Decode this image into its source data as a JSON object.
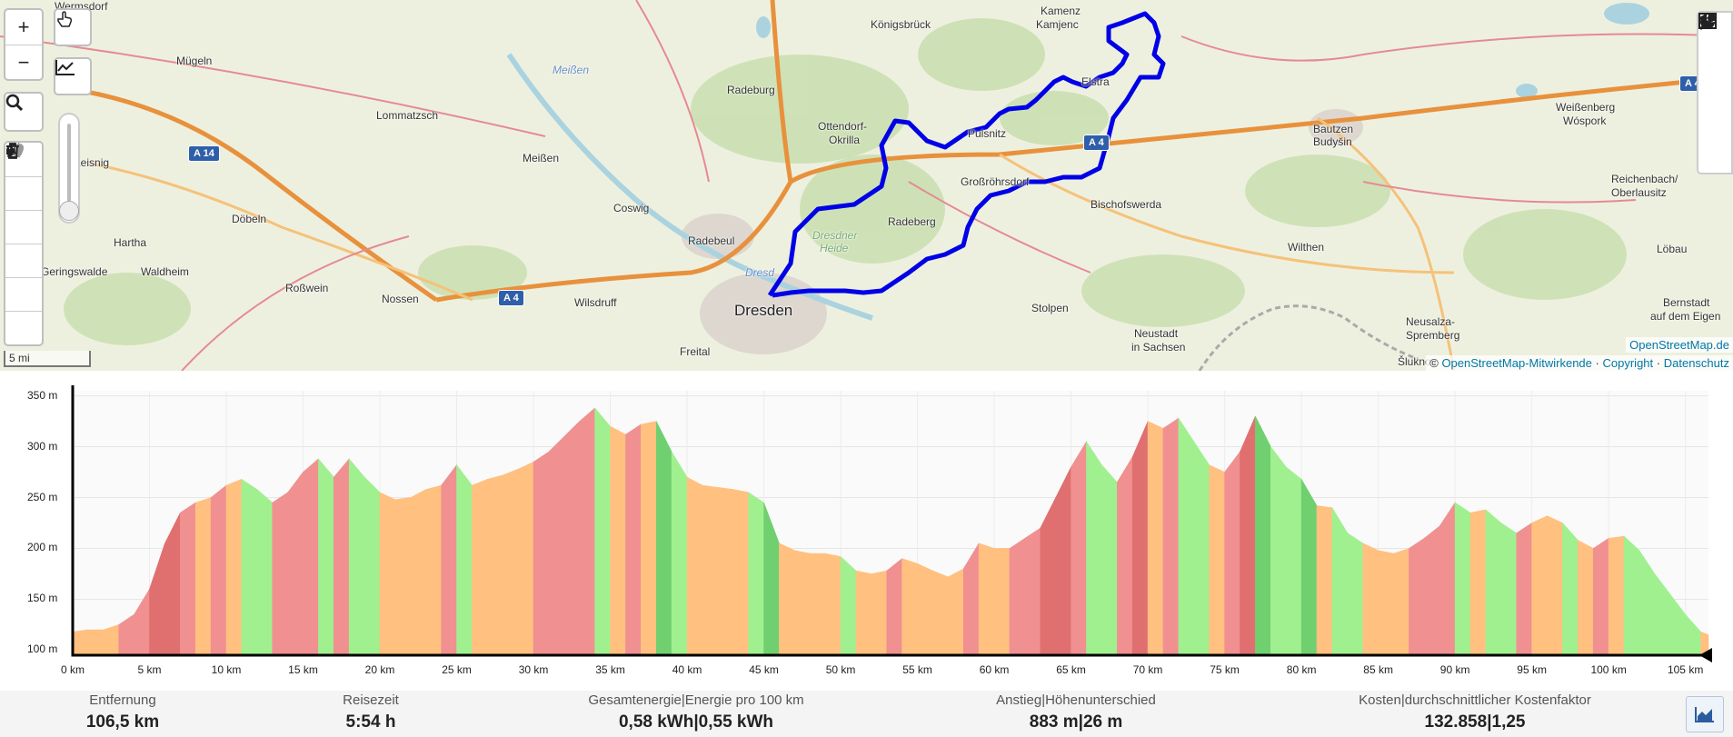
{
  "map": {
    "labels": [
      {
        "name": "Wermsdorf",
        "x": "",
        "cls": ""
      },
      {
        "name": "Mügeln"
      },
      {
        "name": "Lommatzsch"
      },
      {
        "name": "Leisnig"
      },
      {
        "name": "Döbeln"
      },
      {
        "name": "Hartha"
      },
      {
        "name": "Geringswalde"
      },
      {
        "name": "Waldheim"
      },
      {
        "name": "Roßwein"
      },
      {
        "name": "Nossen"
      },
      {
        "name": "Wilsdruff"
      },
      {
        "name": "Meißen"
      },
      {
        "name": "Coswig"
      },
      {
        "name": "Radebeul"
      },
      {
        "name": "Radeburg"
      },
      {
        "name": "Ottendorf-"
      },
      {
        "name": "Okrilla"
      },
      {
        "name": "Königsbrück"
      },
      {
        "name": "Kamenz"
      },
      {
        "name": "Kamjenc"
      },
      {
        "name": "Pulsnitz"
      },
      {
        "name": "Großröhrsdorf"
      },
      {
        "name": "Radeberg"
      },
      {
        "name": "Dresdner"
      },
      {
        "name": "Heide"
      },
      {
        "name": "Dresden"
      },
      {
        "name": "Freital"
      },
      {
        "name": "Stolpen"
      },
      {
        "name": "Bischofswerda"
      },
      {
        "name": "Neustadt"
      },
      {
        "name": "in Sachsen"
      },
      {
        "name": "Wilthen"
      },
      {
        "name": "Bautzen"
      },
      {
        "name": "Budyšin"
      },
      {
        "name": "Weißenberg"
      },
      {
        "name": "Wóspork"
      },
      {
        "name": "Reichenbach/"
      },
      {
        "name": "Oberlausitz"
      },
      {
        "name": "Löbau"
      },
      {
        "name": "Bernstadt"
      },
      {
        "name": "auf dem Eigen"
      },
      {
        "name": "Neusalza-"
      },
      {
        "name": "Spremberg"
      },
      {
        "name": "Šluknov"
      },
      {
        "name": "Elstra"
      },
      {
        "name": "Meißen"
      },
      {
        "name": "Dresd"
      }
    ],
    "shields": [
      "A 14",
      "A 4",
      "A 4",
      "A 4"
    ],
    "attribution": {
      "copy": "©",
      "osm_contrib": "OpenStreetMap-Mitwirkende",
      "sep1": "·",
      "copyright": "Copyright",
      "sep2": "·",
      "privacy": "Datenschutz"
    },
    "attribution_top": "OpenStreetMap.de",
    "scale_label": "5 mi",
    "route_color": "#0000e6"
  },
  "controls": {
    "zoom_in": "+",
    "zoom_out": "−"
  },
  "chart_data": {
    "type": "area",
    "title": "",
    "xlabel": "",
    "ylabel": "",
    "xlim": [
      0,
      106.5
    ],
    "ylim": [
      95,
      355
    ],
    "x_ticks": [
      "0 km",
      "5 km",
      "10 km",
      "15 km",
      "20 km",
      "25 km",
      "30 km",
      "35 km",
      "40 km",
      "45 km",
      "50 km",
      "55 km",
      "60 km",
      "65 km",
      "70 km",
      "75 km",
      "80 km",
      "85 km",
      "90 km",
      "95 km",
      "100 km",
      "105 km"
    ],
    "y_ticks": [
      "100 m",
      "150 m",
      "200 m",
      "250 m",
      "300 m",
      "350 m"
    ],
    "colors": {
      "steep_up": "#e07070",
      "up": "#f09090",
      "flat": "#ffc080",
      "down": "#a0f090",
      "steep_down": "#70d070"
    },
    "elevation": [
      [
        0,
        118
      ],
      [
        1,
        120
      ],
      [
        2,
        120
      ],
      [
        3,
        125
      ],
      [
        4,
        135
      ],
      [
        5,
        160
      ],
      [
        6,
        205
      ],
      [
        7,
        235
      ],
      [
        8,
        245
      ],
      [
        9,
        250
      ],
      [
        10,
        262
      ],
      [
        11,
        268
      ],
      [
        12,
        258
      ],
      [
        13,
        245
      ],
      [
        14,
        255
      ],
      [
        15,
        275
      ],
      [
        16,
        288
      ],
      [
        17,
        270
      ],
      [
        18,
        288
      ],
      [
        19,
        270
      ],
      [
        20,
        255
      ],
      [
        21,
        248
      ],
      [
        22,
        250
      ],
      [
        23,
        258
      ],
      [
        24,
        262
      ],
      [
        25,
        282
      ],
      [
        26,
        262
      ],
      [
        27,
        268
      ],
      [
        28,
        272
      ],
      [
        29,
        278
      ],
      [
        30,
        285
      ],
      [
        31,
        295
      ],
      [
        32,
        310
      ],
      [
        33,
        325
      ],
      [
        34,
        338
      ],
      [
        35,
        320
      ],
      [
        36,
        312
      ],
      [
        37,
        322
      ],
      [
        38,
        325
      ],
      [
        39,
        295
      ],
      [
        40,
        270
      ],
      [
        41,
        262
      ],
      [
        42,
        260
      ],
      [
        43,
        258
      ],
      [
        44,
        255
      ],
      [
        45,
        245
      ],
      [
        46,
        205
      ],
      [
        47,
        198
      ],
      [
        48,
        195
      ],
      [
        49,
        195
      ],
      [
        50,
        192
      ],
      [
        51,
        178
      ],
      [
        52,
        175
      ],
      [
        53,
        178
      ],
      [
        54,
        190
      ],
      [
        55,
        185
      ],
      [
        56,
        178
      ],
      [
        57,
        172
      ],
      [
        58,
        180
      ],
      [
        59,
        205
      ],
      [
        60,
        200
      ],
      [
        61,
        200
      ],
      [
        62,
        210
      ],
      [
        63,
        220
      ],
      [
        64,
        250
      ],
      [
        65,
        280
      ],
      [
        66,
        305
      ],
      [
        67,
        282
      ],
      [
        68,
        265
      ],
      [
        69,
        290
      ],
      [
        70,
        325
      ],
      [
        71,
        318
      ],
      [
        72,
        328
      ],
      [
        73,
        305
      ],
      [
        74,
        282
      ],
      [
        75,
        275
      ],
      [
        76,
        295
      ],
      [
        77,
        330
      ],
      [
        78,
        300
      ],
      [
        79,
        280
      ],
      [
        80,
        268
      ],
      [
        81,
        242
      ],
      [
        82,
        240
      ],
      [
        83,
        215
      ],
      [
        84,
        205
      ],
      [
        85,
        198
      ],
      [
        86,
        195
      ],
      [
        87,
        200
      ],
      [
        88,
        210
      ],
      [
        89,
        222
      ],
      [
        90,
        245
      ],
      [
        91,
        235
      ],
      [
        92,
        238
      ],
      [
        93,
        225
      ],
      [
        94,
        215
      ],
      [
        95,
        225
      ],
      [
        96,
        232
      ],
      [
        97,
        225
      ],
      [
        98,
        208
      ],
      [
        99,
        200
      ],
      [
        100,
        210
      ],
      [
        101,
        212
      ],
      [
        102,
        198
      ],
      [
        103,
        175
      ],
      [
        104,
        155
      ],
      [
        105,
        135
      ],
      [
        106,
        118
      ],
      [
        106.5,
        115
      ]
    ]
  },
  "stats": [
    {
      "label": "Entfernung",
      "value": "106,5 km"
    },
    {
      "label": "Reisezeit",
      "value": "5:54 h"
    },
    {
      "label": "Gesamtenergie|Energie pro 100 km",
      "value": "0,58 kWh|0,55 kWh"
    },
    {
      "label": "Anstieg|Höhenunterschied",
      "value": "883 m|26 m"
    },
    {
      "label": "Kosten|durchschnittlicher Kostenfaktor",
      "value": "132.858|1,25"
    }
  ]
}
